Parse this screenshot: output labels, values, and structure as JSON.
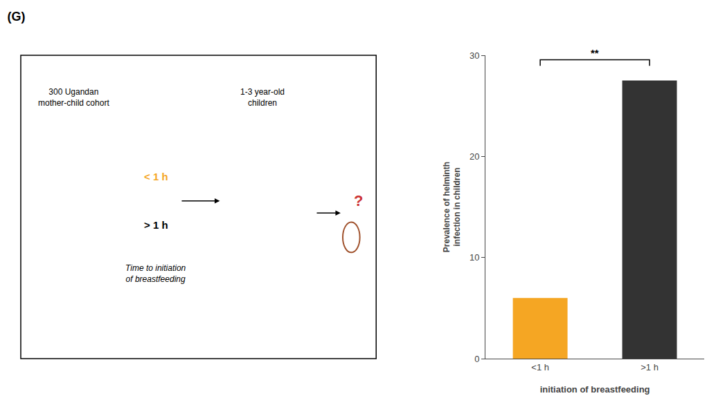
{
  "chart_data": {
    "type": "bar",
    "title": "(G)",
    "categories": [
      "<1 h",
      ">1 h"
    ],
    "values": [
      6.0,
      27.5
    ],
    "colors": [
      "#F5A623",
      "#333333"
    ],
    "xlabel": "initiation of breastfeeding",
    "ylabel": "Prevalence of helminth\ninfection in children",
    "ylim": [
      0,
      30
    ],
    "yticks": [
      0,
      10,
      20,
      30
    ],
    "grid": false,
    "annotations": [
      "**",
      "300 Ugandan\nmother-child cohort",
      "1-3 year-old\nchildren",
      "< 1 h",
      "> 1 h",
      "Time to initiation\nof breastfeeding",
      "?"
    ]
  }
}
